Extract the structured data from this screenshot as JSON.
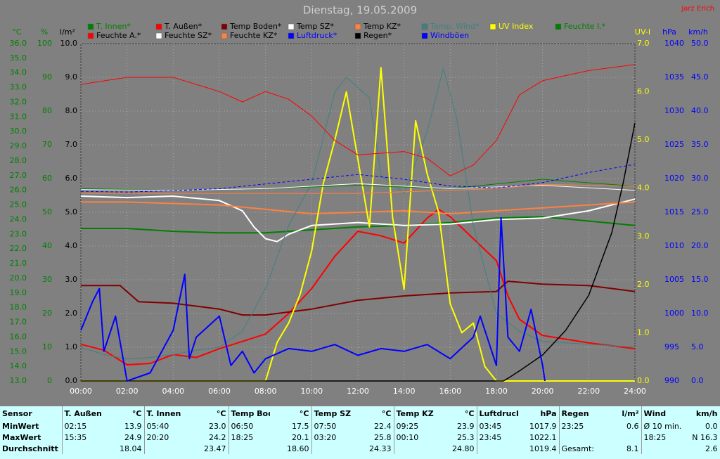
{
  "chart_data": {
    "type": "line",
    "title": "Dienstag, 19.05.2009",
    "author": "Jarz Erich",
    "xlim": [
      0,
      24
    ],
    "xticks": [
      {
        "value": 0,
        "label": "00:00"
      },
      {
        "value": 2,
        "label": "02:00"
      },
      {
        "value": 4,
        "label": "04:00"
      },
      {
        "value": 6,
        "label": "06:00"
      },
      {
        "value": 8,
        "label": "08:00"
      },
      {
        "value": 10,
        "label": "10:00"
      },
      {
        "value": 12,
        "label": "12:00"
      },
      {
        "value": 14,
        "label": "14:00"
      },
      {
        "value": 16,
        "label": "16:00"
      },
      {
        "value": 18,
        "label": "18:00"
      },
      {
        "value": 20,
        "label": "20:00"
      },
      {
        "value": 22,
        "label": "22:00"
      },
      {
        "value": 24,
        "label": "24:00"
      }
    ],
    "grid": true,
    "axes": [
      {
        "label": "°C",
        "color": "#008000",
        "lim": [
          13,
          36
        ],
        "ticks": [
          {
            "value": 13,
            "label": "13.0"
          },
          {
            "value": 14,
            "label": "14.0"
          },
          {
            "value": 15,
            "label": "15.0"
          },
          {
            "value": 16,
            "label": "16.0"
          },
          {
            "value": 17,
            "label": "17.0"
          },
          {
            "value": 18,
            "label": "18.0"
          },
          {
            "value": 19,
            "label": "19.0"
          },
          {
            "value": 20,
            "label": "20.0"
          },
          {
            "value": 21,
            "label": "21.0"
          },
          {
            "value": 22,
            "label": "22.0"
          },
          {
            "value": 23,
            "label": "23.0"
          },
          {
            "value": 24,
            "label": "24.0"
          },
          {
            "value": 25,
            "label": "25.0"
          },
          {
            "value": 26,
            "label": "26.0"
          },
          {
            "value": 27,
            "label": "27.0"
          },
          {
            "value": 28,
            "label": "28.0"
          },
          {
            "value": 29,
            "label": "29.0"
          },
          {
            "value": 30,
            "label": "30.0"
          },
          {
            "value": 31,
            "label": "31.0"
          },
          {
            "value": 32,
            "label": "32.0"
          },
          {
            "value": 33,
            "label": "33.0"
          },
          {
            "value": 34,
            "label": "34.0"
          },
          {
            "value": 35,
            "label": "35.0"
          },
          {
            "value": 36,
            "label": "36.0"
          }
        ]
      },
      {
        "label": "%",
        "color": "#008000",
        "lim": [
          0,
          100
        ],
        "ticks": [
          0,
          10,
          20,
          30,
          40,
          50,
          60,
          70,
          80,
          90,
          100
        ]
      },
      {
        "label": "l/m²",
        "color": "#000000",
        "lim": [
          0,
          10
        ],
        "ticks": [
          {
            "value": 0,
            "label": "0.0"
          },
          {
            "value": 1,
            "label": "1.0"
          },
          {
            "value": 2,
            "label": "2.0"
          },
          {
            "value": 3,
            "label": "3.0"
          },
          {
            "value": 4,
            "label": "4.0"
          },
          {
            "value": 5,
            "label": "5.0"
          },
          {
            "value": 6,
            "label": "6.0"
          },
          {
            "value": 7,
            "label": "7.0"
          },
          {
            "value": 8,
            "label": "8.0"
          },
          {
            "value": 9,
            "label": "9.0"
          },
          {
            "value": 10,
            "label": "10.0"
          }
        ]
      },
      {
        "label": "UV-I",
        "color": "#ffff00",
        "lim": [
          0,
          7
        ],
        "ticks": [
          {
            "value": 0,
            "label": "0.0"
          },
          {
            "value": 1,
            "label": "1.0"
          },
          {
            "value": 2,
            "label": "2.0"
          },
          {
            "value": 3,
            "label": "3.0"
          },
          {
            "value": 4,
            "label": "4.0"
          },
          {
            "value": 5,
            "label": "5.0"
          },
          {
            "value": 6,
            "label": "6.0"
          },
          {
            "value": 7,
            "label": "7.0"
          }
        ]
      },
      {
        "label": "hPa",
        "color": "#0000ff",
        "lim": [
          990,
          1040
        ],
        "ticks": [
          990,
          995,
          1000,
          1005,
          1010,
          1015,
          1020,
          1025,
          1030,
          1035,
          1040
        ]
      },
      {
        "label": "km/h",
        "color": "#0000ff",
        "lim": [
          0,
          50
        ],
        "ticks": [
          {
            "value": 0,
            "label": "0.0"
          },
          {
            "value": 5,
            "label": "5.0"
          },
          {
            "value": 10,
            "label": "10.0"
          },
          {
            "value": 15,
            "label": "15.0"
          },
          {
            "value": 20,
            "label": "20.0"
          },
          {
            "value": 25,
            "label": "25.0"
          },
          {
            "value": 30,
            "label": "30.0"
          },
          {
            "value": 35,
            "label": "35.0"
          },
          {
            "value": 40,
            "label": "40.0"
          },
          {
            "value": 45,
            "label": "45.0"
          },
          {
            "value": 50,
            "label": "50.0"
          }
        ]
      }
    ],
    "series": [
      {
        "name": "T. Innen*",
        "color": "#008000",
        "axis": "°C",
        "x": [
          0,
          2,
          4,
          6,
          8,
          10,
          12,
          14,
          16,
          18,
          20,
          22,
          24
        ],
        "values": [
          23.4,
          23.4,
          23.2,
          23.1,
          23.1,
          23.3,
          23.5,
          23.6,
          23.8,
          24.1,
          24.2,
          23.9,
          23.6
        ]
      },
      {
        "name": "T. Außen*",
        "color": "#ff0000",
        "axis": "°C",
        "x": [
          0,
          1,
          2,
          3,
          4,
          5,
          6,
          7,
          8,
          9,
          10,
          11,
          12,
          13,
          14,
          15,
          15.5,
          16,
          17,
          18,
          18.5,
          19,
          20,
          22,
          24
        ],
        "values": [
          15.5,
          15.1,
          14.1,
          14.2,
          14.8,
          14.6,
          15.2,
          15.7,
          16.2,
          17.6,
          19.3,
          21.5,
          23.2,
          22.9,
          22.4,
          24.1,
          24.7,
          24.2,
          22.7,
          21.2,
          18.8,
          17.2,
          16.1,
          15.6,
          15.2
        ]
      },
      {
        "name": "Temp Boden*",
        "color": "#800000",
        "axis": "°C",
        "x": [
          0,
          1.7,
          2.5,
          4,
          6,
          7,
          8,
          10,
          12,
          14,
          16,
          18,
          18.5,
          20,
          22,
          24
        ],
        "values": [
          19.5,
          19.5,
          18.4,
          18.3,
          17.9,
          17.5,
          17.5,
          17.9,
          18.5,
          18.8,
          19.0,
          19.1,
          19.8,
          19.6,
          19.5,
          19.1
        ]
      },
      {
        "name": "Temp SZ*",
        "color": "#ffffff",
        "axis": "°C",
        "x": [
          0,
          2,
          4,
          6,
          7,
          7.5,
          8,
          8.5,
          9,
          10,
          12,
          14,
          16,
          18,
          20,
          22,
          24
        ],
        "values": [
          25.6,
          25.5,
          25.6,
          25.3,
          24.6,
          23.5,
          22.7,
          22.5,
          23.0,
          23.6,
          23.8,
          23.6,
          23.7,
          24.0,
          24.1,
          24.6,
          25.4
        ]
      },
      {
        "name": "Temp KZ*",
        "color": "#ff8040",
        "axis": "°C",
        "x": [
          0,
          2,
          4,
          6,
          8,
          10,
          12,
          14,
          16,
          18,
          20,
          22,
          24
        ],
        "values": [
          25.2,
          25.2,
          25.1,
          25.0,
          24.7,
          24.4,
          24.5,
          24.6,
          24.4,
          24.6,
          24.8,
          25.0,
          25.2
        ]
      },
      {
        "name": "Temp. Wind*",
        "color": "#408080",
        "axis": "°C",
        "x": [
          0,
          1,
          2,
          3,
          4,
          5,
          6,
          7,
          8,
          9,
          10,
          11,
          11.5,
          12,
          12.5,
          13,
          14,
          15,
          15.7,
          16.3,
          17,
          18,
          19,
          20,
          22,
          24
        ],
        "values": [
          15.3,
          14.8,
          14.5,
          14.6,
          14.8,
          15.1,
          15.3,
          16.4,
          19.3,
          23.6,
          26.5,
          32.7,
          33.7,
          33.0,
          32.3,
          27.0,
          25.8,
          30.0,
          34.3,
          30.8,
          23.6,
          17.6,
          16.4,
          15.7,
          15.5,
          15.3
        ]
      },
      {
        "name": "UV Index",
        "color": "#ffff00",
        "axis": "UV-I",
        "x": [
          0,
          8,
          8.5,
          9,
          9.5,
          10,
          10.5,
          11,
          11.5,
          12,
          12.5,
          13,
          13.5,
          14,
          14.5,
          15,
          15.5,
          16,
          16.5,
          17,
          17.5,
          18,
          24
        ],
        "values": [
          0,
          0,
          0.8,
          1.2,
          1.8,
          2.7,
          4.1,
          5.0,
          6.0,
          4.6,
          3.2,
          6.5,
          3.4,
          1.9,
          5.4,
          4.3,
          3.5,
          1.6,
          1.0,
          1.2,
          0.3,
          0,
          0
        ]
      },
      {
        "name": "Feuchte I.*",
        "color": "#008000",
        "axis": "%",
        "x": [
          0,
          4,
          8,
          12,
          16,
          20,
          24
        ],
        "values": [
          57,
          56.5,
          57,
          58,
          57,
          59.8,
          57.7
        ]
      },
      {
        "name": "Feuchte A.*",
        "color": "#ff0000",
        "axis": "%",
        "x": [
          0,
          2,
          4,
          6,
          7,
          8,
          9,
          10,
          11,
          12,
          14,
          15,
          16,
          17,
          18,
          19,
          20,
          22,
          24
        ],
        "values": [
          87.9,
          90,
          90,
          85.8,
          82.7,
          85.8,
          83.5,
          78.5,
          71.3,
          67,
          68,
          66,
          60.8,
          64,
          71.3,
          84.8,
          89,
          92,
          93.8
        ]
      },
      {
        "name": "Feuchte SZ*",
        "color": "#ffffff",
        "axis": "%",
        "x": [
          0,
          4,
          8,
          12,
          16,
          20,
          24
        ],
        "values": [
          56.7,
          56.5,
          57,
          58.5,
          57,
          58,
          56.5
        ]
      },
      {
        "name": "Feuchte KZ*",
        "color": "#ff8040",
        "axis": "%",
        "x": [
          0,
          6,
          12,
          18,
          20,
          24
        ],
        "values": [
          55.6,
          55.6,
          55.6,
          57,
          58.3,
          57.7
        ]
      },
      {
        "name": "Luftdruck*",
        "color": "#0000ff",
        "axis": "hPa",
        "line_style": "dashed",
        "x": [
          0,
          2,
          4,
          6,
          8,
          10,
          12,
          14,
          16,
          18,
          20,
          22,
          24
        ],
        "values": [
          1018.1,
          1018.0,
          1018.2,
          1018.5,
          1019.2,
          1019.9,
          1020.6,
          1019.9,
          1018.9,
          1018.6,
          1019.4,
          1020.9,
          1022.1
        ]
      },
      {
        "name": "Regen*",
        "color": "#000000",
        "axis": "l/m²",
        "x": [
          0,
          18.3,
          18.5,
          19,
          20,
          21,
          22,
          23,
          23.5,
          24
        ],
        "values": [
          0,
          0,
          0.08,
          0.3,
          0.77,
          1.5,
          2.54,
          4.4,
          5.9,
          7.65
        ]
      },
      {
        "name": "Windböen",
        "color": "#0000ff",
        "axis": "km/h",
        "x": [
          0,
          0.5,
          0.8,
          1,
          1.5,
          2,
          3,
          4,
          4.5,
          4.7,
          5,
          6,
          6.5,
          7,
          7.5,
          8,
          9,
          10,
          11,
          12,
          13,
          14,
          15,
          16,
          17,
          17.3,
          18,
          18.2,
          18.5,
          19,
          19.5,
          20,
          20.1
        ],
        "values": [
          7.5,
          11.7,
          13.7,
          4.4,
          9.6,
          0,
          1.2,
          7.5,
          15.8,
          3.3,
          6.5,
          9.6,
          2.3,
          4.4,
          1.2,
          3.3,
          4.8,
          4.4,
          5.4,
          3.8,
          4.8,
          4.4,
          5.4,
          3.3,
          6.5,
          9.6,
          2.3,
          24.2,
          6.5,
          4.4,
          10.6,
          2.3,
          0
        ]
      }
    ]
  },
  "stats": {
    "sensor": "Sensor",
    "headers": [
      {
        "name": "T. Außen",
        "unit": "°C"
      },
      {
        "name": "T. Innen",
        "unit": "°C"
      },
      {
        "name": "Temp Boden",
        "unit": "°C"
      },
      {
        "name": "Temp SZ",
        "unit": "°C"
      },
      {
        "name": "Temp KZ",
        "unit": "°C"
      },
      {
        "name": "Luftdruck",
        "unit": "hPa"
      },
      {
        "name": "Regen",
        "unit": "l/m²"
      },
      {
        "name": "Wind",
        "unit": "km/h"
      }
    ],
    "rows": [
      {
        "label": "MinWert",
        "cells": [
          [
            "02:15",
            "13.9"
          ],
          [
            "05:40",
            "23.0"
          ],
          [
            "06:50",
            "17.5"
          ],
          [
            "07:50",
            "22.4"
          ],
          [
            "09:25",
            "23.9"
          ],
          [
            "03:45",
            "1017.9"
          ],
          [
            "23:25",
            "0.6"
          ],
          [
            "Ø 10 min.",
            "0.0"
          ]
        ]
      },
      {
        "label": "MaxWert",
        "cells": [
          [
            "15:35",
            "24.9"
          ],
          [
            "20:20",
            "24.2"
          ],
          [
            "18:25",
            "20.1"
          ],
          [
            "03:20",
            "25.8"
          ],
          [
            "00:10",
            "25.3"
          ],
          [
            "23:45",
            "1022.1"
          ],
          [
            null,
            null
          ],
          [
            "18:25",
            "N 16.3"
          ]
        ]
      },
      {
        "label": "Durchschnitt",
        "cells": [
          [
            null,
            "18.04"
          ],
          [
            null,
            "23.47"
          ],
          [
            null,
            "18.60"
          ],
          [
            null,
            "24.33"
          ],
          [
            null,
            "24.80"
          ],
          [
            null,
            "1019.4"
          ],
          [
            "Gesamt:",
            "8.1"
          ],
          [
            null,
            "2.6"
          ]
        ]
      }
    ]
  }
}
